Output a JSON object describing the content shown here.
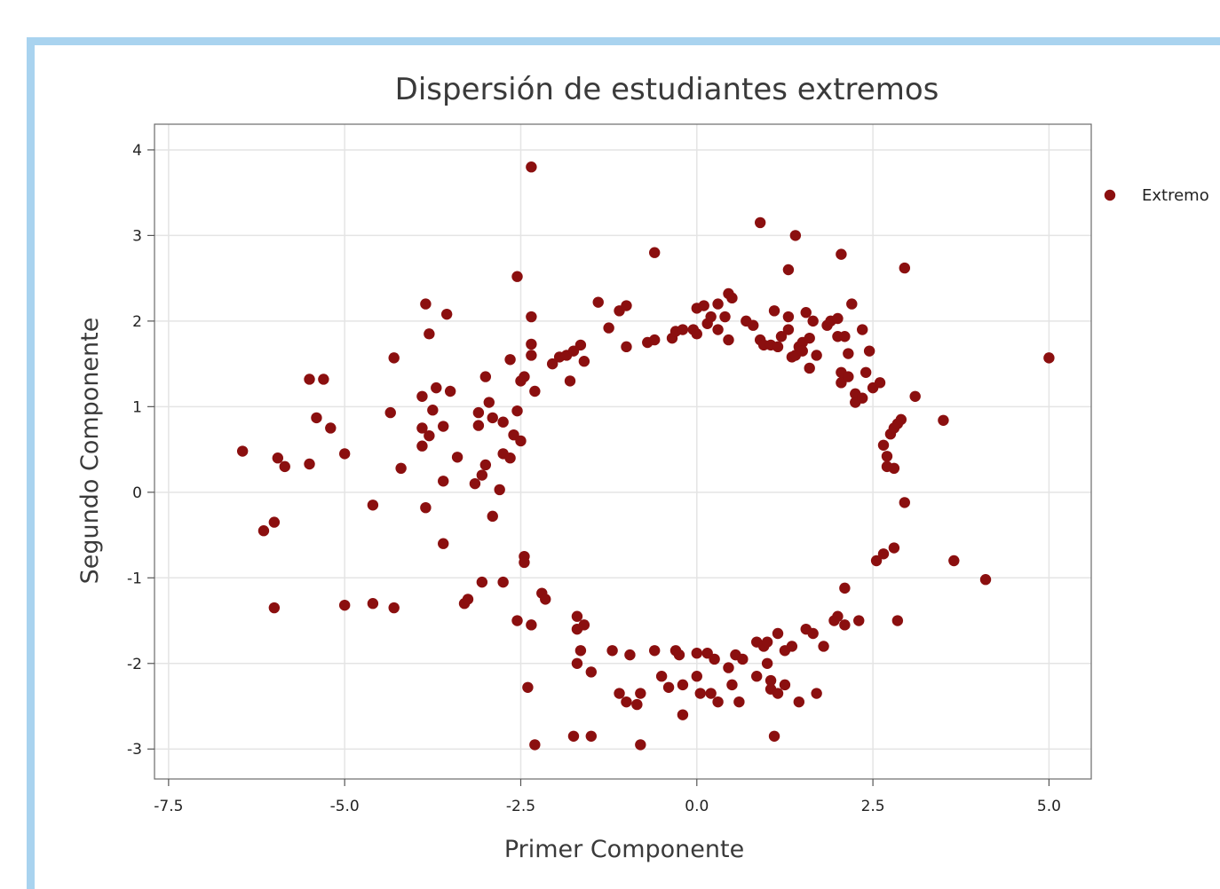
{
  "chart_data": {
    "type": "scatter",
    "title": "Dispersión de estudiantes extremos",
    "xlabel": "Primer Componente",
    "ylabel": "Segundo Componente",
    "xlim": [
      -7.7,
      5.6
    ],
    "ylim": [
      -3.35,
      4.3
    ],
    "xticks": [
      "-7.5",
      "-5.0",
      "-2.5",
      "0.0",
      "2.5",
      "5.0"
    ],
    "xtick_values": [
      -7.5,
      -5.0,
      -2.5,
      0.0,
      2.5,
      5.0
    ],
    "yticks": [
      "-3",
      "-2",
      "-1",
      "0",
      "1",
      "2",
      "3",
      "4"
    ],
    "ytick_values": [
      -3,
      -2,
      -1,
      0,
      1,
      2,
      3,
      4
    ],
    "grid": true,
    "legend": {
      "position": "right",
      "entries": [
        "Extremo"
      ]
    },
    "colors": {
      "points": "#8b0f0f",
      "grid": "#e4e4e4",
      "frame_border": "#a9d3ef"
    },
    "series": [
      {
        "name": "Extremo",
        "points": [
          [
            -6.45,
            0.48
          ],
          [
            -6.15,
            -0.45
          ],
          [
            -6.0,
            -0.35
          ],
          [
            -6.0,
            -1.35
          ],
          [
            -5.95,
            0.4
          ],
          [
            -5.85,
            0.3
          ],
          [
            -5.5,
            1.32
          ],
          [
            -5.5,
            0.33
          ],
          [
            -5.4,
            0.87
          ],
          [
            -5.3,
            1.32
          ],
          [
            -5.2,
            0.75
          ],
          [
            -5.0,
            0.45
          ],
          [
            -5.0,
            -1.32
          ],
          [
            -4.6,
            -0.15
          ],
          [
            -4.6,
            -1.3
          ],
          [
            -4.35,
            0.93
          ],
          [
            -4.3,
            1.57
          ],
          [
            -4.3,
            -1.35
          ],
          [
            -4.2,
            0.28
          ],
          [
            -3.85,
            2.2
          ],
          [
            -3.8,
            1.85
          ],
          [
            -3.9,
            1.12
          ],
          [
            -3.75,
            0.96
          ],
          [
            -3.7,
            1.22
          ],
          [
            -3.9,
            0.75
          ],
          [
            -3.9,
            0.54
          ],
          [
            -3.8,
            0.66
          ],
          [
            -3.85,
            -0.18
          ],
          [
            -3.6,
            0.77
          ],
          [
            -3.55,
            2.08
          ],
          [
            -3.5,
            1.18
          ],
          [
            -3.6,
            0.13
          ],
          [
            -3.4,
            0.41
          ],
          [
            -3.6,
            -0.6
          ],
          [
            -3.3,
            -1.3
          ],
          [
            -3.25,
            -1.25
          ],
          [
            -3.15,
            0.1
          ],
          [
            -3.1,
            0.93
          ],
          [
            -3.1,
            0.78
          ],
          [
            -3.05,
            0.2
          ],
          [
            -3.05,
            -1.05
          ],
          [
            -3.0,
            1.35
          ],
          [
            -3.0,
            0.32
          ],
          [
            -2.95,
            1.05
          ],
          [
            -2.9,
            0.87
          ],
          [
            -2.9,
            -0.28
          ],
          [
            -2.8,
            0.03
          ],
          [
            -2.75,
            0.82
          ],
          [
            -2.75,
            0.45
          ],
          [
            -2.75,
            -1.05
          ],
          [
            -2.65,
            1.55
          ],
          [
            -2.6,
            0.67
          ],
          [
            -2.65,
            0.4
          ],
          [
            -2.55,
            0.95
          ],
          [
            -2.55,
            2.52
          ],
          [
            -2.5,
            1.3
          ],
          [
            -2.45,
            1.35
          ],
          [
            -2.5,
            0.6
          ],
          [
            -2.45,
            -0.75
          ],
          [
            -2.45,
            -0.82
          ],
          [
            -2.55,
            -1.5
          ],
          [
            -2.35,
            -1.55
          ],
          [
            -2.35,
            2.05
          ],
          [
            -2.35,
            1.73
          ],
          [
            -2.35,
            1.6
          ],
          [
            -2.3,
            1.18
          ],
          [
            -2.35,
            3.8
          ],
          [
            -2.4,
            -2.28
          ],
          [
            -2.3,
            -2.95
          ],
          [
            -2.2,
            -1.18
          ],
          [
            -2.15,
            -1.25
          ],
          [
            -2.05,
            1.5
          ],
          [
            -1.95,
            1.58
          ],
          [
            -1.85,
            1.6
          ],
          [
            -1.8,
            1.3
          ],
          [
            -1.75,
            1.65
          ],
          [
            -1.65,
            1.72
          ],
          [
            -1.6,
            1.53
          ],
          [
            -1.7,
            -1.45
          ],
          [
            -1.7,
            -1.6
          ],
          [
            -1.6,
            -1.55
          ],
          [
            -1.65,
            -1.85
          ],
          [
            -1.7,
            -2.0
          ],
          [
            -1.75,
            -2.85
          ],
          [
            -1.5,
            -2.85
          ],
          [
            -1.5,
            -2.1
          ],
          [
            -1.4,
            2.22
          ],
          [
            -1.25,
            1.92
          ],
          [
            -1.2,
            -1.85
          ],
          [
            -1.1,
            2.12
          ],
          [
            -1.0,
            2.18
          ],
          [
            -1.0,
            1.7
          ],
          [
            -1.1,
            -2.35
          ],
          [
            -1.0,
            -2.45
          ],
          [
            -0.95,
            -1.9
          ],
          [
            -0.85,
            -2.48
          ],
          [
            -0.8,
            -2.35
          ],
          [
            -0.8,
            -2.95
          ],
          [
            -0.7,
            1.75
          ],
          [
            -0.6,
            2.8
          ],
          [
            -0.6,
            1.78
          ],
          [
            -0.6,
            -1.85
          ],
          [
            -0.5,
            -2.15
          ],
          [
            -0.4,
            -2.28
          ],
          [
            -0.35,
            1.8
          ],
          [
            -0.3,
            1.88
          ],
          [
            -0.3,
            -1.85
          ],
          [
            -0.25,
            -1.9
          ],
          [
            -0.2,
            1.9
          ],
          [
            -0.2,
            -2.25
          ],
          [
            -0.2,
            -2.6
          ],
          [
            -0.05,
            1.9
          ],
          [
            0.0,
            2.15
          ],
          [
            0.0,
            1.85
          ],
          [
            0.0,
            -1.88
          ],
          [
            0.0,
            -2.15
          ],
          [
            0.05,
            -2.35
          ],
          [
            0.1,
            2.18
          ],
          [
            0.15,
            1.97
          ],
          [
            0.15,
            -1.88
          ],
          [
            0.2,
            2.05
          ],
          [
            0.2,
            -2.35
          ],
          [
            0.25,
            -1.95
          ],
          [
            0.3,
            2.2
          ],
          [
            0.3,
            1.9
          ],
          [
            0.3,
            -2.45
          ],
          [
            0.4,
            2.05
          ],
          [
            0.45,
            2.32
          ],
          [
            0.45,
            1.78
          ],
          [
            0.45,
            -2.05
          ],
          [
            0.5,
            2.27
          ],
          [
            0.5,
            -2.25
          ],
          [
            0.55,
            -1.9
          ],
          [
            0.6,
            -2.45
          ],
          [
            0.65,
            -1.95
          ],
          [
            0.7,
            2.0
          ],
          [
            0.8,
            1.95
          ],
          [
            0.85,
            -1.75
          ],
          [
            0.85,
            -2.15
          ],
          [
            0.9,
            3.15
          ],
          [
            0.9,
            1.78
          ],
          [
            0.95,
            1.72
          ],
          [
            0.95,
            -1.8
          ],
          [
            1.0,
            -1.75
          ],
          [
            1.0,
            -2.0
          ],
          [
            1.05,
            1.72
          ],
          [
            1.05,
            -2.2
          ],
          [
            1.05,
            -2.3
          ],
          [
            1.1,
            -2.85
          ],
          [
            1.1,
            2.12
          ],
          [
            1.15,
            1.7
          ],
          [
            1.15,
            -1.65
          ],
          [
            1.15,
            -2.35
          ],
          [
            1.2,
            1.82
          ],
          [
            1.25,
            -2.25
          ],
          [
            1.25,
            -1.85
          ],
          [
            1.3,
            1.9
          ],
          [
            1.3,
            2.05
          ],
          [
            1.3,
            2.6
          ],
          [
            1.35,
            -1.8
          ],
          [
            1.35,
            1.58
          ],
          [
            1.4,
            3.0
          ],
          [
            1.4,
            1.6
          ],
          [
            1.45,
            1.7
          ],
          [
            1.45,
            -2.45
          ],
          [
            1.5,
            1.75
          ],
          [
            1.5,
            1.65
          ],
          [
            1.55,
            -1.6
          ],
          [
            1.55,
            2.1
          ],
          [
            1.6,
            1.45
          ],
          [
            1.6,
            1.8
          ],
          [
            1.65,
            2.0
          ],
          [
            1.65,
            -1.65
          ],
          [
            1.7,
            -2.35
          ],
          [
            1.7,
            1.6
          ],
          [
            1.8,
            -1.8
          ],
          [
            1.85,
            1.95
          ],
          [
            1.9,
            2.0
          ],
          [
            1.95,
            -1.5
          ],
          [
            2.0,
            2.03
          ],
          [
            2.0,
            -1.45
          ],
          [
            2.0,
            1.82
          ],
          [
            2.05,
            2.78
          ],
          [
            2.05,
            1.28
          ],
          [
            2.05,
            1.4
          ],
          [
            2.1,
            -1.55
          ],
          [
            2.1,
            -1.12
          ],
          [
            2.1,
            1.82
          ],
          [
            2.15,
            1.62
          ],
          [
            2.15,
            1.35
          ],
          [
            2.2,
            2.2
          ],
          [
            2.25,
            1.15
          ],
          [
            2.25,
            1.05
          ],
          [
            2.3,
            -1.5
          ],
          [
            2.35,
            1.9
          ],
          [
            2.35,
            1.1
          ],
          [
            2.4,
            1.4
          ],
          [
            2.45,
            1.65
          ],
          [
            2.5,
            1.22
          ],
          [
            2.55,
            -0.8
          ],
          [
            2.6,
            1.28
          ],
          [
            2.65,
            -0.72
          ],
          [
            2.65,
            0.55
          ],
          [
            2.7,
            0.3
          ],
          [
            2.7,
            0.42
          ],
          [
            2.75,
            0.68
          ],
          [
            2.8,
            0.75
          ],
          [
            2.8,
            0.28
          ],
          [
            2.8,
            -0.65
          ],
          [
            2.85,
            0.8
          ],
          [
            2.9,
            0.85
          ],
          [
            2.85,
            -1.5
          ],
          [
            2.95,
            2.62
          ],
          [
            2.95,
            -0.12
          ],
          [
            3.1,
            1.12
          ],
          [
            3.5,
            0.84
          ],
          [
            3.65,
            -0.8
          ],
          [
            4.1,
            -1.02
          ],
          [
            5.0,
            1.57
          ]
        ]
      }
    ]
  }
}
